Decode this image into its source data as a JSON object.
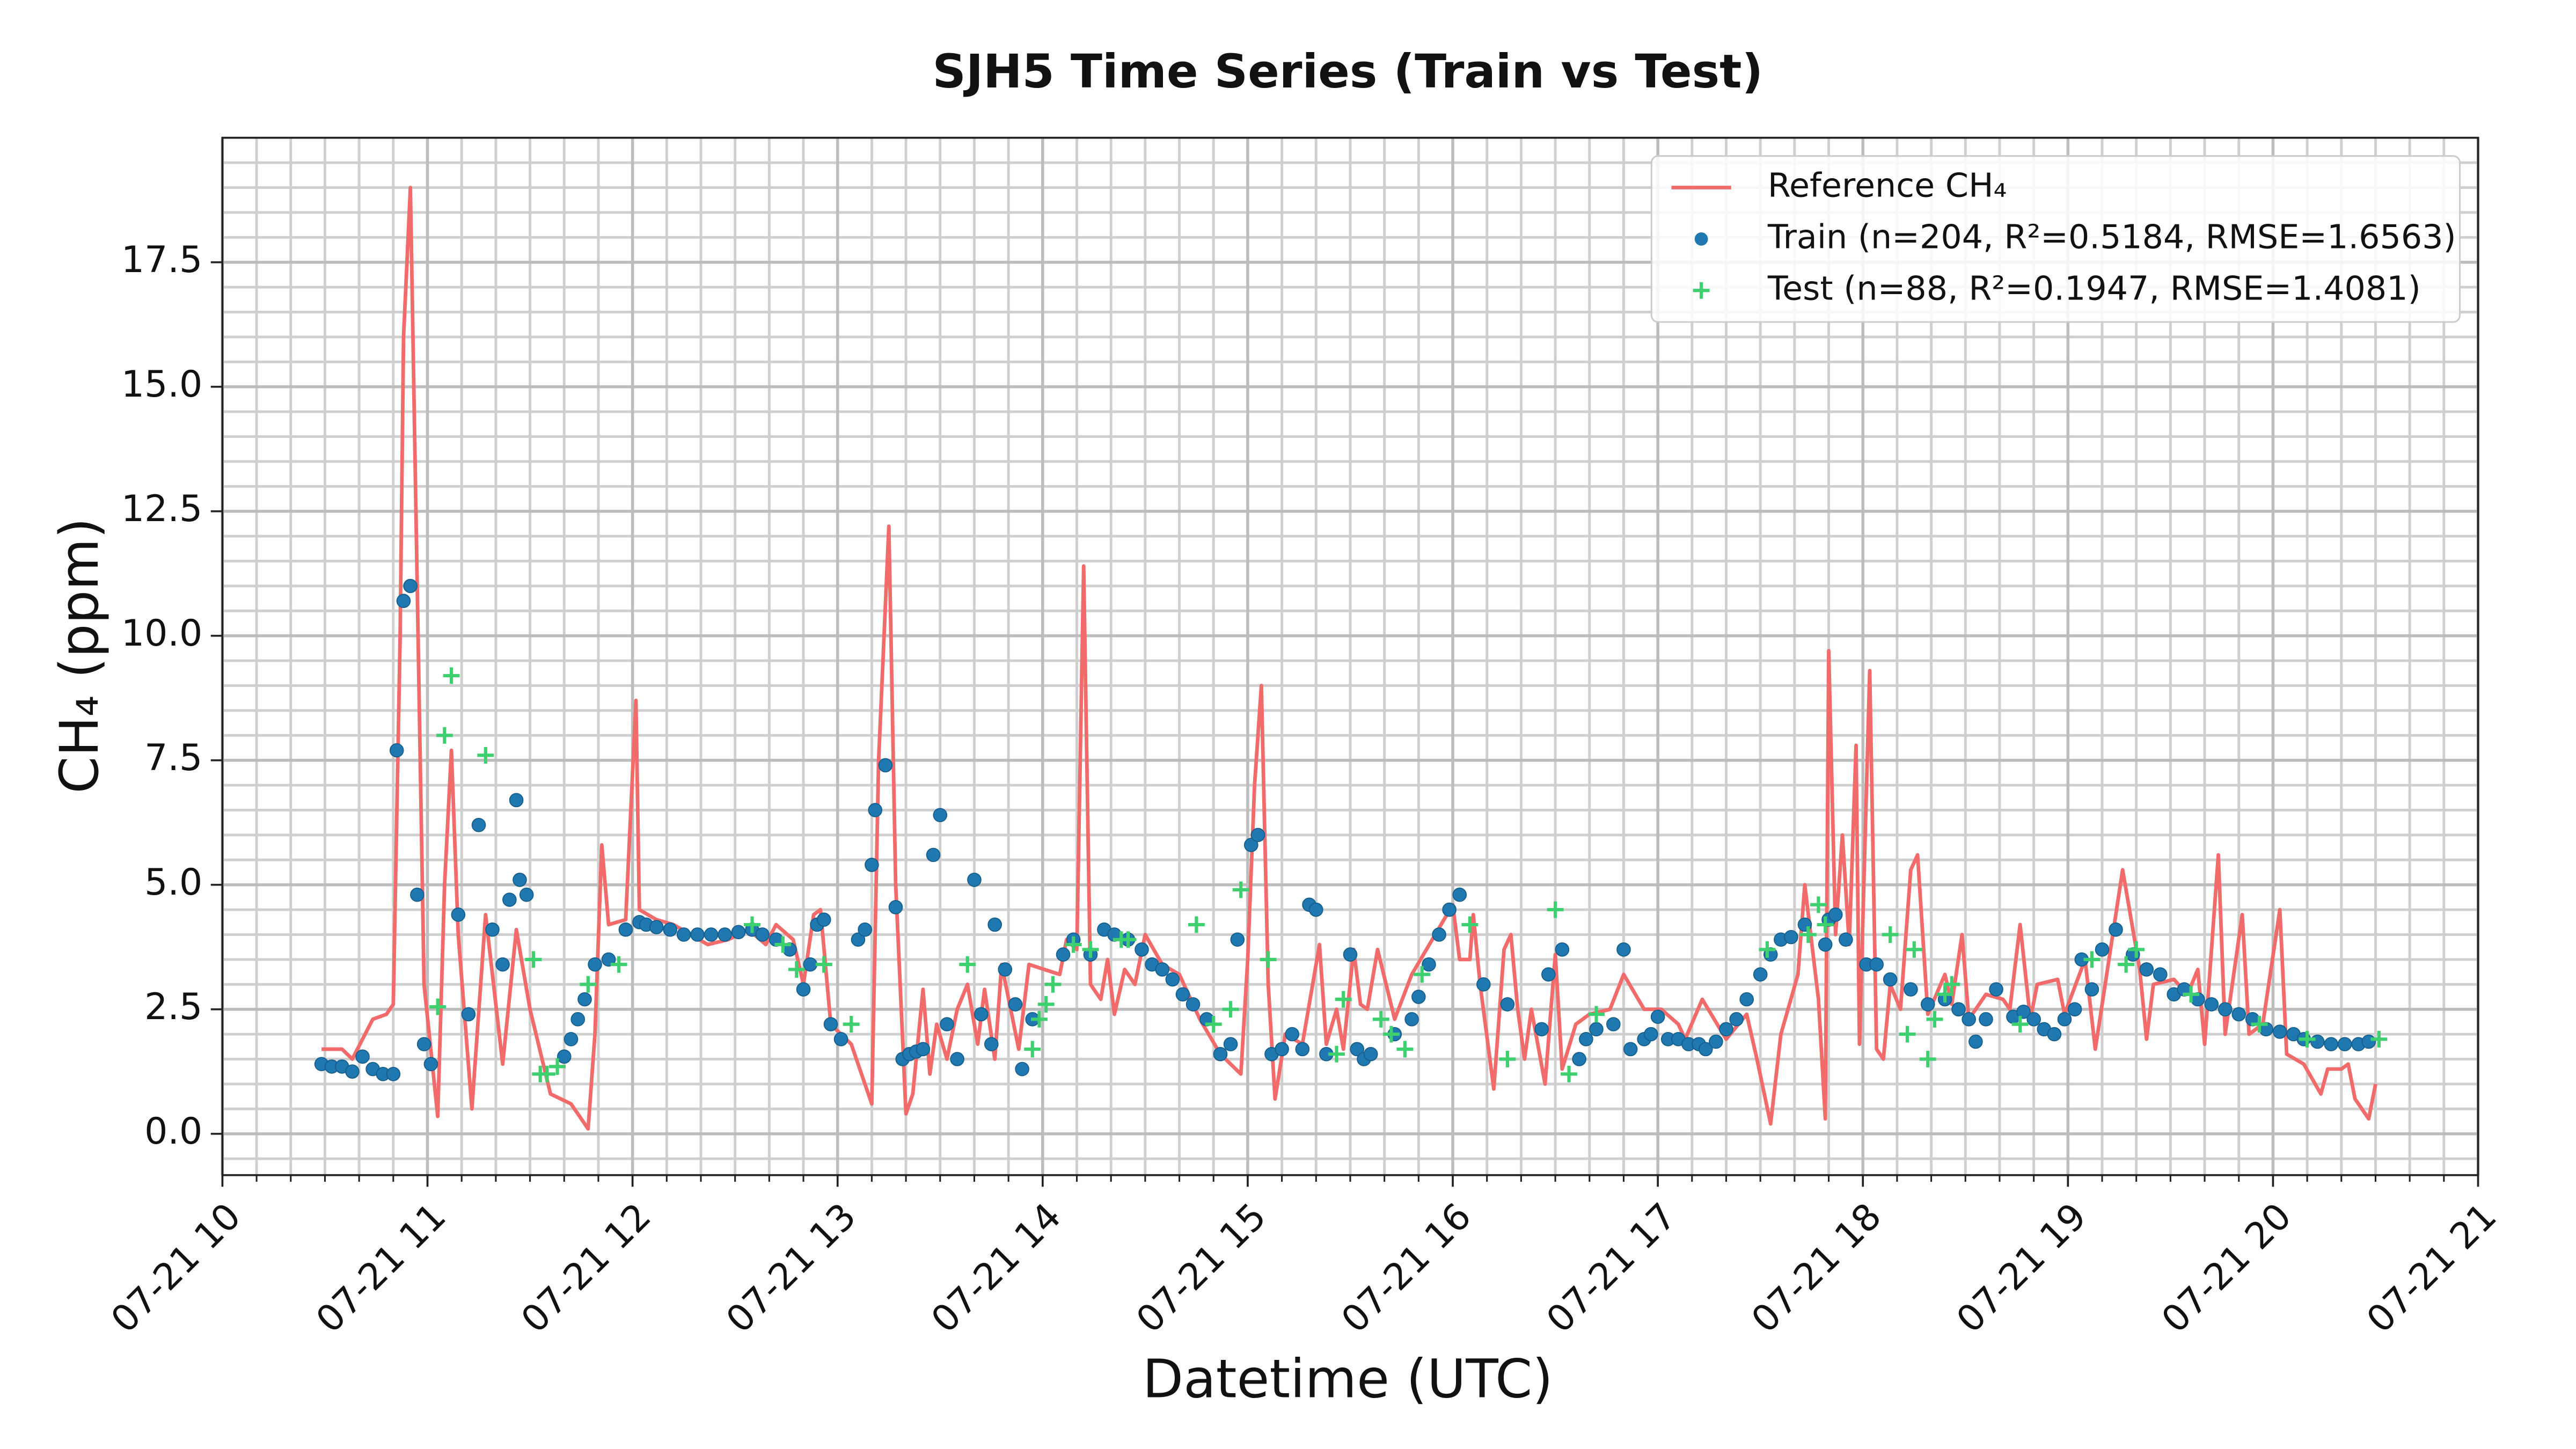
{
  "chart_data": {
    "type": "line",
    "title": "SJH5 Time Series (Train vs Test)",
    "x_label": "Datetime (UTC)",
    "y_label": "CH₄ (ppm)",
    "xlim": [
      600,
      1260
    ],
    "ylim": [
      -0.83,
      20.0
    ],
    "xticks": [
      {
        "value": 600,
        "label": "07-21 10"
      },
      {
        "value": 660,
        "label": "07-21 11"
      },
      {
        "value": 720,
        "label": "07-21 12"
      },
      {
        "value": 780,
        "label": "07-21 13"
      },
      {
        "value": 840,
        "label": "07-21 14"
      },
      {
        "value": 900,
        "label": "07-21 15"
      },
      {
        "value": 960,
        "label": "07-21 16"
      },
      {
        "value": 1020,
        "label": "07-21 17"
      },
      {
        "value": 1080,
        "label": "07-21 18"
      },
      {
        "value": 1140,
        "label": "07-21 19"
      },
      {
        "value": 1200,
        "label": "07-21 20"
      },
      {
        "value": 1260,
        "label": "07-21 21"
      }
    ],
    "yticks": [
      {
        "value": 0,
        "label": "0.0"
      },
      2.5,
      {
        "value": 5,
        "label": "5.0"
      },
      7.5,
      {
        "value": 10,
        "label": "10.0"
      },
      12.5,
      {
        "value": 15,
        "label": "15.0"
      },
      17.5
    ],
    "xminorticks": [
      610,
      620,
      630,
      640,
      650,
      670,
      680,
      690,
      700,
      710,
      730,
      740,
      750,
      760,
      770,
      790,
      800,
      810,
      820,
      830,
      850,
      860,
      870,
      880,
      890,
      910,
      920,
      930,
      940,
      950,
      970,
      980,
      990,
      1000,
      1010,
      1030,
      1040,
      1050,
      1060,
      1070,
      1090,
      1100,
      1110,
      1120,
      1130,
      1150,
      1160,
      1170,
      1180,
      1190,
      1210,
      1220,
      1230,
      1240,
      1250
    ],
    "yminorticks": [
      -0.5,
      0.5,
      1,
      1.5,
      2,
      3,
      3.5,
      4,
      4.5,
      5.5,
      6,
      6.5,
      7,
      8,
      8.5,
      9,
      9.5,
      10.5,
      11,
      11.5,
      12,
      13,
      13.5,
      14,
      14.5,
      15.5,
      16,
      16.5,
      17,
      18,
      18.5,
      19,
      19.5
    ],
    "grid": true,
    "legend_position": "upper right",
    "series": [
      {
        "name": "Reference CH₄",
        "type": "line",
        "color": "#f26b6b",
        "x": [
          629,
          635,
          638,
          644,
          648,
          650,
          652,
          653,
          655,
          657,
          659,
          663,
          665,
          667,
          669,
          673,
          677,
          682,
          686,
          690,
          696,
          702,
          707,
          709,
          711,
          713,
          718,
          721,
          722,
          727,
          732,
          737,
          742,
          748,
          754,
          759,
          762,
          767,
          770,
          773,
          775,
          778,
          784,
          790,
          792,
          795,
          797,
          800,
          802,
          805,
          807,
          809,
          812,
          815,
          818,
          821,
          823,
          826,
          828,
          833,
          836,
          845,
          847,
          850,
          852,
          854,
          857,
          859,
          861,
          864,
          867,
          870,
          875,
          880,
          886,
          892,
          898,
          900,
          902,
          904,
          906,
          908,
          911,
          916,
          919,
          921,
          923,
          926,
          928,
          931,
          933,
          935,
          938,
          943,
          948,
          954,
          960,
          962,
          965,
          966,
          968,
          972,
          975,
          977,
          979,
          981,
          983,
          987,
          990,
          992,
          996,
          1000,
          1006,
          1010,
          1016,
          1021,
          1026,
          1028,
          1033,
          1040,
          1046,
          1049,
          1053,
          1056,
          1061,
          1063,
          1067,
          1069,
          1070,
          1072,
          1074,
          1076,
          1078,
          1079,
          1082,
          1084,
          1086,
          1088,
          1091,
          1094,
          1096,
          1099,
          1104,
          1106,
          1109,
          1111,
          1116,
          1121,
          1123,
          1126,
          1129,
          1131,
          1137,
          1139,
          1145,
          1148,
          1152,
          1156,
          1158,
          1161,
          1163,
          1165,
          1171,
          1175,
          1178,
          1180,
          1184,
          1186,
          1191,
          1193,
          1197,
          1202,
          1204,
          1209,
          1214,
          1216,
          1220,
          1222,
          1224,
          1228,
          1230
        ],
        "values": [
          1.7,
          1.7,
          1.5,
          2.3,
          2.4,
          2.6,
          10,
          16,
          19.0,
          11,
          3,
          0.35,
          5,
          7.7,
          4,
          0.5,
          4.4,
          1.4,
          4.1,
          2.5,
          0.8,
          0.6,
          0.1,
          2,
          5.8,
          4.2,
          4.3,
          8.7,
          4.5,
          4.3,
          4.2,
          4.0,
          3.8,
          3.9,
          4.1,
          3.8,
          4.2,
          3.9,
          3.0,
          4.4,
          4.5,
          2.2,
          1.8,
          0.6,
          7.5,
          12.2,
          5,
          0.4,
          0.8,
          2.9,
          1.2,
          2.2,
          1.5,
          2.5,
          3.0,
          1.8,
          2.9,
          1.5,
          3.4,
          1.7,
          3.4,
          3.2,
          3.9,
          3.7,
          11.4,
          3.0,
          2.7,
          3.5,
          2.4,
          3.3,
          3.0,
          4.0,
          3.4,
          3.2,
          2.3,
          1.6,
          1.2,
          3.5,
          7,
          9.0,
          3,
          0.7,
          2.0,
          1.8,
          3.0,
          3.8,
          1.8,
          2.5,
          1.7,
          3.7,
          2.6,
          2.5,
          3.7,
          2.3,
          3.2,
          3.9,
          4.6,
          3.5,
          3.5,
          4.4,
          3.0,
          0.9,
          3.7,
          4.0,
          2.5,
          1.5,
          2.5,
          1.0,
          3.6,
          1.3,
          2.2,
          2.4,
          2.5,
          3.2,
          2.5,
          2.5,
          2.2,
          1.9,
          2.7,
          1.9,
          2.4,
          1.5,
          0.2,
          2.0,
          3.2,
          5.0,
          2.7,
          0.3,
          9.7,
          4.0,
          6.0,
          3.8,
          7.8,
          1.8,
          9.3,
          1.7,
          1.5,
          3.0,
          2.5,
          5.3,
          5.6,
          2.4,
          3.2,
          2.6,
          4.0,
          2.3,
          2.8,
          2.7,
          2.5,
          4.2,
          2.3,
          3.0,
          3.1,
          2.4,
          3.5,
          1.7,
          3.5,
          5.3,
          4.5,
          3.3,
          1.9,
          3.0,
          3.1,
          2.8,
          3.3,
          1.8,
          5.6,
          2.0,
          4.4,
          2.0,
          2.2,
          4.5,
          1.6,
          1.4,
          0.8,
          1.3,
          1.3,
          1.4,
          0.7,
          0.3,
          1.0
        ]
      },
      {
        "name": "Train (n=204, R²=0.5184, RMSE=1.6563)",
        "type": "scatter",
        "marker": "o",
        "color": "#1f78b0",
        "x": [
          629,
          632,
          635,
          638,
          641,
          644,
          647,
          650,
          651,
          653,
          655,
          657,
          659,
          661,
          669,
          672,
          675,
          679,
          682,
          684,
          686,
          687,
          689,
          700,
          702,
          704,
          706,
          709,
          713,
          718,
          722,
          724,
          727,
          731,
          735,
          739,
          743,
          747,
          751,
          755,
          758,
          762,
          766,
          770,
          772,
          774,
          776,
          778,
          781,
          786,
          788,
          790,
          791,
          794,
          797,
          799,
          801,
          803,
          805,
          808,
          810,
          812,
          815,
          820,
          822,
          825,
          826,
          829,
          832,
          834,
          837,
          846,
          849,
          854,
          858,
          861,
          865,
          869,
          872,
          875,
          878,
          881,
          884,
          888,
          892,
          895,
          897,
          901,
          903,
          907,
          910,
          913,
          916,
          918,
          920,
          923,
          930,
          932,
          934,
          936,
          943,
          948,
          950,
          953,
          956,
          959,
          962,
          969,
          976,
          986,
          988,
          992,
          997,
          999,
          1002,
          1007,
          1010,
          1012,
          1016,
          1018,
          1020,
          1023,
          1026,
          1029,
          1032,
          1034,
          1037,
          1040,
          1043,
          1046,
          1050,
          1053,
          1056,
          1059,
          1063,
          1069,
          1070,
          1072,
          1075,
          1081,
          1084,
          1088,
          1094,
          1099,
          1104,
          1108,
          1111,
          1113,
          1116,
          1119,
          1124,
          1127,
          1130,
          1133,
          1136,
          1139,
          1142,
          1144,
          1147,
          1150,
          1154,
          1159,
          1163,
          1167,
          1171,
          1174,
          1178,
          1182,
          1186,
          1190,
          1194,
          1198,
          1202,
          1206,
          1209,
          1213,
          1217,
          1221,
          1225,
          1228
        ],
        "values": [
          1.4,
          1.35,
          1.35,
          1.25,
          1.55,
          1.3,
          1.2,
          1.2,
          7.7,
          10.7,
          11.0,
          4.8,
          1.8,
          1.4,
          4.4,
          2.4,
          6.2,
          4.1,
          3.4,
          4.7,
          6.7,
          5.1,
          4.8,
          1.55,
          1.9,
          2.3,
          2.7,
          3.4,
          3.5,
          4.1,
          4.25,
          4.2,
          4.15,
          4.1,
          4.0,
          4.0,
          4.0,
          4.0,
          4.05,
          4.1,
          4.0,
          3.9,
          3.7,
          2.9,
          3.4,
          4.2,
          4.3,
          2.2,
          1.9,
          3.9,
          4.1,
          5.4,
          6.5,
          7.4,
          4.55,
          1.5,
          1.6,
          1.65,
          1.7,
          5.6,
          6.4,
          2.2,
          1.5,
          5.1,
          2.4,
          1.8,
          4.2,
          3.3,
          2.6,
          1.3,
          2.3,
          3.6,
          3.9,
          3.6,
          4.1,
          4.0,
          3.9,
          3.7,
          3.4,
          3.3,
          3.1,
          2.8,
          2.6,
          2.3,
          1.6,
          1.8,
          3.9,
          5.8,
          6.0,
          1.6,
          1.7,
          2.0,
          1.7,
          4.6,
          4.5,
          1.6,
          3.6,
          1.7,
          1.5,
          1.6,
          2.0,
          2.3,
          2.75,
          3.4,
          4.0,
          4.5,
          4.8,
          3.0,
          2.6,
          2.1,
          3.2,
          3.7,
          1.5,
          1.9,
          2.1,
          2.2,
          3.7,
          1.7,
          1.9,
          2.0,
          2.35,
          1.9,
          1.9,
          1.8,
          1.8,
          1.7,
          1.85,
          2.1,
          2.3,
          2.7,
          3.2,
          3.6,
          3.9,
          3.95,
          4.2,
          3.8,
          4.3,
          4.4,
          3.9,
          3.4,
          3.4,
          3.1,
          2.9,
          2.6,
          2.7,
          2.5,
          2.3,
          1.85,
          2.3,
          2.9,
          2.35,
          2.45,
          2.3,
          2.1,
          2.0,
          2.3,
          2.5,
          3.5,
          2.9,
          3.7,
          4.1,
          3.6,
          3.3,
          3.2,
          2.8,
          2.9,
          2.7,
          2.6,
          2.5,
          2.4,
          2.3,
          2.1,
          2.05,
          2.0,
          1.9,
          1.85,
          1.8,
          1.8,
          1.8,
          1.85
        ]
      },
      {
        "name": "Test (n=88, R²=0.1947, RMSE=1.4081)",
        "type": "scatter",
        "marker": "+",
        "color": "#3ecf6e",
        "x": [
          663,
          665,
          667,
          677,
          691,
          693,
          695,
          698,
          707,
          716,
          755,
          764,
          768,
          776,
          784,
          818,
          837,
          839,
          841,
          843,
          849,
          854,
          863,
          865,
          885,
          890,
          895,
          898,
          906,
          926,
          928,
          939,
          942,
          946,
          951,
          965,
          976,
          990,
          994,
          1002,
          1052,
          1064,
          1067,
          1069,
          1088,
          1093,
          1095,
          1099,
          1101,
          1104,
          1106,
          1126,
          1147,
          1157,
          1160,
          1176,
          1196,
          1210,
          1231
        ],
        "values": [
          2.55,
          8.0,
          9.2,
          7.6,
          3.5,
          1.2,
          1.2,
          1.35,
          3.0,
          3.4,
          4.2,
          3.8,
          3.3,
          3.4,
          2.2,
          3.4,
          1.7,
          2.3,
          2.6,
          3.0,
          3.8,
          3.7,
          3.9,
          3.9,
          4.2,
          2.2,
          2.5,
          4.9,
          3.5,
          1.6,
          2.7,
          2.3,
          2.0,
          1.7,
          3.2,
          4.2,
          1.5,
          4.5,
          1.2,
          2.4,
          3.7,
          4.0,
          4.6,
          4.2,
          4.0,
          2.0,
          3.7,
          1.5,
          2.3,
          2.8,
          3.0,
          2.2,
          3.5,
          3.4,
          3.7,
          2.8,
          2.2,
          1.9,
          1.9
        ]
      }
    ]
  }
}
